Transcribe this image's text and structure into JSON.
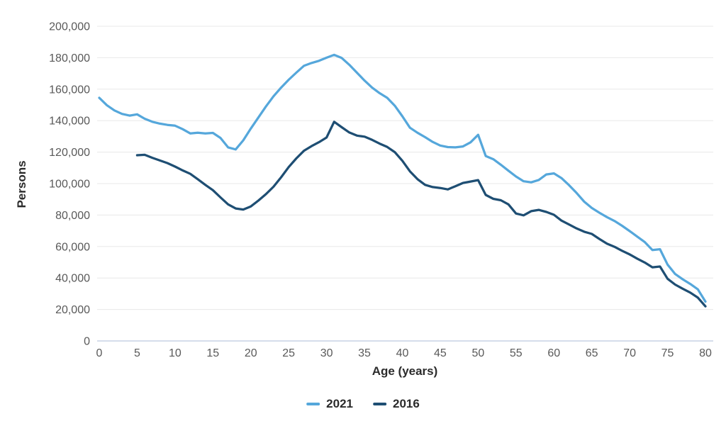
{
  "chart_data": {
    "type": "line",
    "title": "",
    "xlabel": "Age (years)",
    "ylabel": "Persons",
    "xlim": [
      0,
      80
    ],
    "ylim": [
      0,
      200000
    ],
    "xticks": [
      0,
      5,
      10,
      15,
      20,
      25,
      30,
      35,
      40,
      45,
      50,
      55,
      60,
      65,
      70,
      75,
      80
    ],
    "yticks": [
      0,
      20000,
      40000,
      60000,
      80000,
      100000,
      120000,
      140000,
      160000,
      180000,
      200000
    ],
    "grid": "horizontal",
    "legend_position": "bottom",
    "series": [
      {
        "name": "2021",
        "color": "#55A7DB",
        "x_start": 0,
        "x_step": 1,
        "values": [
          154500,
          149800,
          146500,
          144300,
          143200,
          144000,
          141200,
          139300,
          138100,
          137300,
          136800,
          134600,
          131900,
          132300,
          131900,
          132200,
          129000,
          123000,
          121700,
          127500,
          135000,
          142000,
          149000,
          155500,
          161000,
          166000,
          170500,
          174800,
          176600,
          178000,
          180000,
          181800,
          179800,
          175500,
          170500,
          165500,
          161000,
          157500,
          154500,
          149500,
          142800,
          135500,
          132300,
          129500,
          126500,
          124200,
          123200,
          123000,
          123600,
          126200,
          131000,
          117500,
          115500,
          112000,
          108200,
          104500,
          101500,
          100800,
          102300,
          105800,
          106500,
          103500,
          99000,
          94000,
          88500,
          84500,
          81500,
          78700,
          76200,
          73200,
          69800,
          66300,
          62800,
          57800,
          58300,
          48500,
          42500,
          39200,
          36200,
          32800,
          25000
        ]
      },
      {
        "name": "2016",
        "color": "#1E4E73",
        "x_start": 5,
        "x_step": 1,
        "values": [
          118000,
          118300,
          116400,
          114700,
          113000,
          110800,
          108400,
          106200,
          102800,
          99200,
          95800,
          91200,
          86800,
          84200,
          83500,
          85500,
          89200,
          93300,
          98000,
          104000,
          110500,
          116000,
          120800,
          123800,
          126300,
          129300,
          139300,
          135800,
          132500,
          130500,
          129800,
          127800,
          125400,
          123300,
          120000,
          114500,
          107800,
          102800,
          99200,
          97800,
          97200,
          96300,
          98300,
          100400,
          101300,
          102200,
          92800,
          90300,
          89400,
          86800,
          81000,
          79800,
          82500,
          83300,
          82000,
          80200,
          76500,
          74000,
          71500,
          69400,
          68000,
          64800,
          61800,
          59800,
          57300,
          55000,
          52300,
          49800,
          46800,
          47300,
          39500,
          35800,
          33200,
          30700,
          27500,
          22000
        ]
      }
    ]
  },
  "colors": {
    "grid": "#E8E8E8",
    "axis_line": "#D5DDEB",
    "tick_text": "#595959",
    "label_text": "#2B2B2B"
  }
}
